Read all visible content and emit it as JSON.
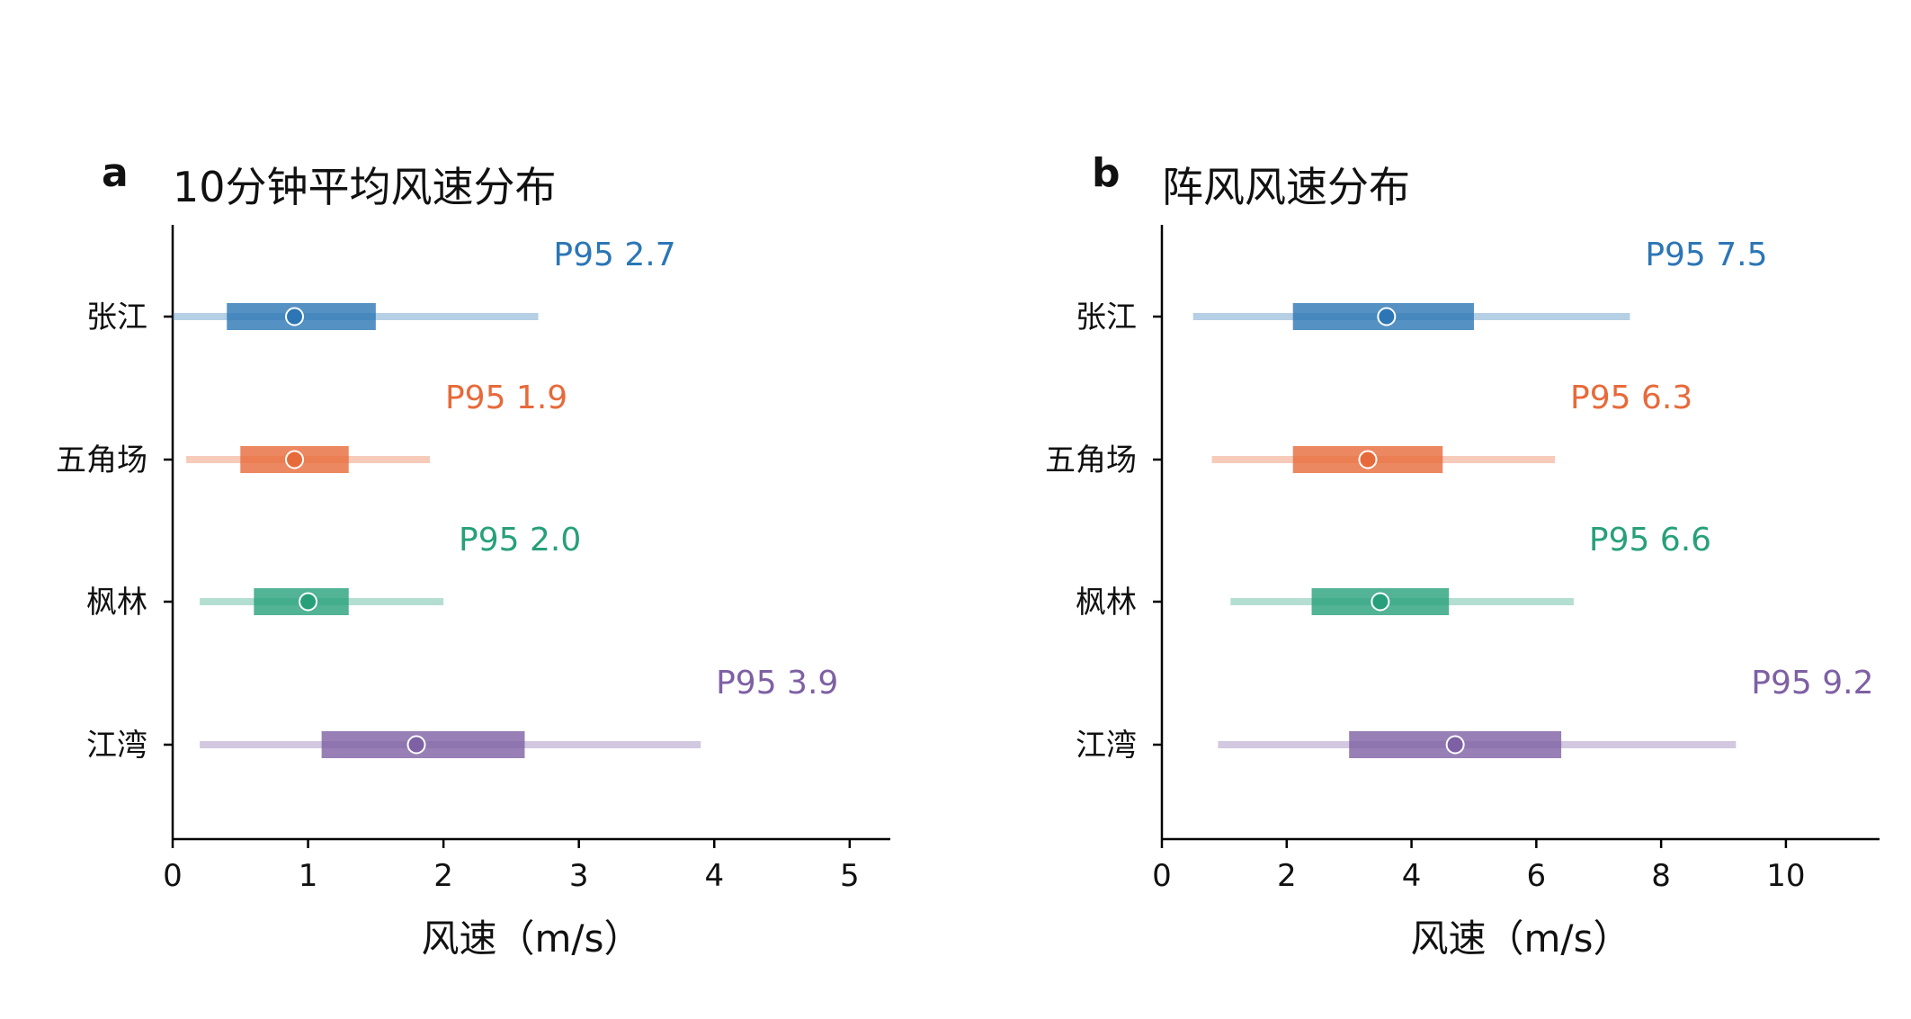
{
  "chart_data": [
    {
      "type": "interval",
      "panel_letter": "a",
      "title": "10分钟平均风速分布",
      "xlabel": "风速（m/s）",
      "xlim": [
        0,
        5.3
      ],
      "xticks": [
        "0",
        "1",
        "2",
        "3",
        "4",
        "5"
      ],
      "categories": [
        "张江",
        "五角场",
        "枫林",
        "江湾"
      ],
      "series": [
        {
          "category": "张江",
          "color": "#2c76b5",
          "range_low": 0.0,
          "range_high": 2.7,
          "iqr_low": 0.4,
          "iqr_high": 1.5,
          "median": 0.9,
          "p95_text": "P95 2.7",
          "p95": 2.7
        },
        {
          "category": "五角场",
          "color": "#e76a3a",
          "range_low": 0.1,
          "range_high": 1.9,
          "iqr_low": 0.5,
          "iqr_high": 1.3,
          "median": 0.9,
          "p95_text": "P95 1.9",
          "p95": 1.9
        },
        {
          "category": "枫林",
          "color": "#27a07a",
          "range_low": 0.2,
          "range_high": 2.0,
          "iqr_low": 0.6,
          "iqr_high": 1.3,
          "median": 1.0,
          "p95_text": "P95 2.0",
          "p95": 2.0
        },
        {
          "category": "江湾",
          "color": "#7e60a4",
          "range_low": 0.2,
          "range_high": 3.9,
          "iqr_low": 1.1,
          "iqr_high": 2.6,
          "median": 1.8,
          "p95_text": "P95 3.9",
          "p95": 3.9
        }
      ]
    },
    {
      "type": "interval",
      "panel_letter": "b",
      "title": "阵风风速分布",
      "xlabel": "风速（m/s）",
      "xlim": [
        0,
        11.5
      ],
      "xticks": [
        "0",
        "2",
        "4",
        "6",
        "8",
        "10"
      ],
      "categories": [
        "张江",
        "五角场",
        "枫林",
        "江湾"
      ],
      "series": [
        {
          "category": "张江",
          "color": "#2c76b5",
          "range_low": 0.5,
          "range_high": 7.5,
          "iqr_low": 2.1,
          "iqr_high": 5.0,
          "median": 3.6,
          "p95_text": "P95 7.5",
          "p95": 7.5
        },
        {
          "category": "五角场",
          "color": "#e76a3a",
          "range_low": 0.8,
          "range_high": 6.3,
          "iqr_low": 2.1,
          "iqr_high": 4.5,
          "median": 3.3,
          "p95_text": "P95 6.3",
          "p95": 6.3
        },
        {
          "category": "枫林",
          "color": "#27a07a",
          "range_low": 1.1,
          "range_high": 6.6,
          "iqr_low": 2.4,
          "iqr_high": 4.6,
          "median": 3.5,
          "p95_text": "P95 6.6",
          "p95": 6.6
        },
        {
          "category": "江湾",
          "color": "#7e60a4",
          "range_low": 0.9,
          "range_high": 9.2,
          "iqr_low": 3.0,
          "iqr_high": 6.4,
          "median": 4.7,
          "p95_text": "P95 9.2",
          "p95": 9.2
        }
      ]
    }
  ]
}
